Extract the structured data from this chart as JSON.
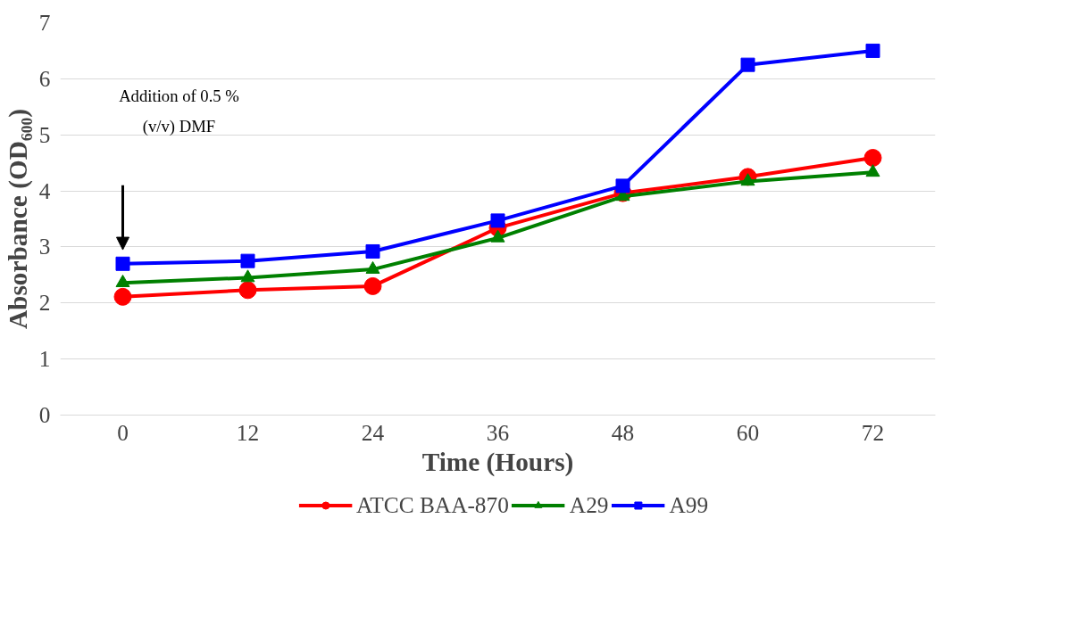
{
  "chart_data": {
    "type": "line",
    "xlabel": "Time (Hours)",
    "ylabel": "Absorbance (OD₆₀₀)",
    "categories": [
      "0",
      "12",
      "24",
      "36",
      "48",
      "60",
      "72"
    ],
    "ylim": [
      0,
      7
    ],
    "yticks": [
      0,
      1,
      2,
      3,
      4,
      5,
      6,
      7
    ],
    "grid": "y",
    "legend": "bottom",
    "series": [
      {
        "name": "ATCC BAA-870",
        "color": "#ff0000",
        "marker": "circle",
        "values": [
          2.11,
          2.23,
          2.3,
          3.34,
          3.96,
          4.25,
          4.59
        ]
      },
      {
        "name": "A29",
        "color": "#008000",
        "marker": "triangle",
        "values": [
          2.36,
          2.45,
          2.6,
          3.16,
          3.9,
          4.17,
          4.33
        ]
      },
      {
        "name": "A99",
        "color": "#0000ff",
        "marker": "square",
        "values": [
          2.7,
          2.75,
          2.92,
          3.47,
          4.09,
          6.25,
          6.5
        ]
      }
    ],
    "annotations": [
      "Addition of 0.5 %\n(v/v) DMF"
    ]
  }
}
